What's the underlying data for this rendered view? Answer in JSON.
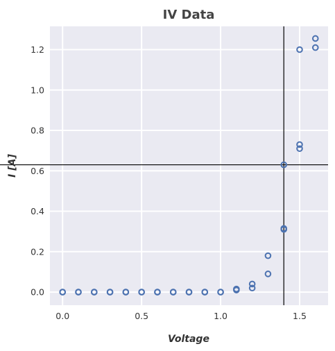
{
  "chart_data": {
    "type": "scatter",
    "title": "IV Data",
    "xlabel": "Voltage",
    "ylabel": "I [A]",
    "xlim": [
      -0.08,
      1.68
    ],
    "ylim": [
      -0.065,
      1.315
    ],
    "xticks": [
      0.0,
      0.5,
      1.0,
      1.5
    ],
    "xtick_labels": [
      "0.0",
      "0.5",
      "1.0",
      "1.5"
    ],
    "yticks": [
      0.0,
      0.2,
      0.4,
      0.6,
      0.8,
      1.0,
      1.2
    ],
    "ytick_labels": [
      "0.0",
      "0.2",
      "0.4",
      "0.6",
      "0.8",
      "1.0",
      "1.2"
    ],
    "grid": true,
    "marker": "open-circle",
    "marker_color": "#4c72b0",
    "background": "#eaeaf2",
    "reference_lines": {
      "vertical_x": 1.4,
      "horizontal_y": 0.63,
      "color": "#000000"
    },
    "series": [
      {
        "points": [
          [
            0.0,
            0.0
          ],
          [
            0.0,
            0.0
          ],
          [
            0.1,
            0.0
          ],
          [
            0.1,
            0.0
          ],
          [
            0.2,
            0.0
          ],
          [
            0.2,
            0.0
          ],
          [
            0.3,
            0.0
          ],
          [
            0.3,
            0.0
          ],
          [
            0.4,
            0.0
          ],
          [
            0.4,
            0.0
          ],
          [
            0.5,
            0.0
          ],
          [
            0.5,
            0.0
          ],
          [
            0.6,
            0.0
          ],
          [
            0.6,
            0.0
          ],
          [
            0.7,
            0.0
          ],
          [
            0.7,
            0.0
          ],
          [
            0.8,
            0.0
          ],
          [
            0.8,
            0.0
          ],
          [
            0.9,
            0.0
          ],
          [
            0.9,
            0.0
          ],
          [
            1.0,
            0.0
          ],
          [
            1.0,
            0.0
          ],
          [
            1.1,
            0.01
          ],
          [
            1.1,
            0.015
          ],
          [
            1.2,
            0.02
          ],
          [
            1.2,
            0.04
          ],
          [
            1.3,
            0.09
          ],
          [
            1.3,
            0.18
          ],
          [
            1.4,
            0.31
          ],
          [
            1.4,
            0.315
          ],
          [
            1.4,
            0.63
          ],
          [
            1.5,
            0.71
          ],
          [
            1.5,
            0.73
          ],
          [
            1.5,
            1.2
          ],
          [
            1.6,
            1.21
          ],
          [
            1.6,
            1.255
          ]
        ]
      }
    ]
  }
}
